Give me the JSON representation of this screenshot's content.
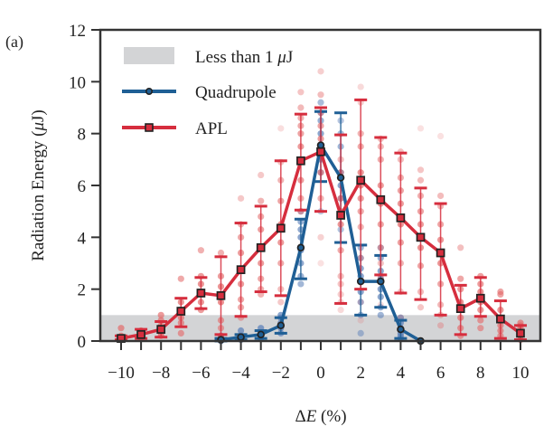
{
  "chart_data": {
    "type": "line",
    "panel_label": "(a)",
    "title": "",
    "xlabel": "ΔE (%)",
    "ylabel": "Radiation Energy (μJ)",
    "xlim": [
      -11.1,
      11
    ],
    "ylim": [
      0,
      12
    ],
    "xticks": [
      -10,
      -8,
      -6,
      -4,
      -2,
      0,
      2,
      4,
      6,
      8,
      10
    ],
    "xtick_labels": [
      "−10",
      "−8",
      "−6",
      "−4",
      "−2",
      "0",
      "2",
      "4",
      "6",
      "8",
      "10"
    ],
    "xticks_minor": [
      -9,
      -7,
      -5,
      -3,
      -1,
      1,
      3,
      5,
      7,
      9
    ],
    "yticks": [
      0,
      2,
      4,
      6,
      8,
      10,
      12
    ],
    "ytick_labels": [
      "0",
      "2",
      "4",
      "6",
      "8",
      "10",
      "12"
    ],
    "grid": false,
    "legend_position": "top-left",
    "threshold_band": {
      "label": "Less than 1 μJ",
      "ymin": 0,
      "ymax": 1,
      "color": "#d3d4d6"
    },
    "series": [
      {
        "name": "Quadrupole",
        "color": "#1f5f95",
        "scatter_color": "#5a7fb8",
        "marker": "circle",
        "x": [
          -5,
          -4,
          -3,
          -2,
          -1,
          0,
          1,
          2,
          3,
          4,
          5
        ],
        "y": [
          0.05,
          0.15,
          0.25,
          0.6,
          3.6,
          7.55,
          6.3,
          2.3,
          2.3,
          0.45,
          0.0
        ],
        "err_low": [
          0.05,
          0.1,
          0.15,
          0.3,
          1.2,
          1.4,
          2.5,
          1.3,
          1.0,
          0.35,
          0.0
        ],
        "err_high": [
          0.05,
          0.1,
          0.15,
          0.3,
          1.1,
          1.3,
          2.5,
          1.4,
          1.0,
          0.35,
          0.0
        ],
        "samples": [
          [
            0.0,
            0.05,
            0.1,
            0.2
          ],
          [
            0.05,
            0.1,
            0.2,
            0.4
          ],
          [
            0.1,
            0.2,
            0.3,
            0.5
          ],
          [
            0.3,
            0.5,
            0.7,
            0.9,
            1.0
          ],
          [
            2.2,
            2.5,
            3.0,
            3.5,
            4.0,
            4.3,
            4.6,
            5.0
          ],
          [
            5.0,
            6.5,
            7.0,
            7.5,
            8.0,
            8.5,
            8.8,
            9.2
          ],
          [
            4.3,
            5.5,
            6.0,
            6.5,
            7.5,
            8.0,
            8.5
          ],
          [
            0.3,
            1.0,
            1.5,
            1.9,
            2.5,
            2.8,
            3.2,
            3.6
          ],
          [
            1.0,
            1.3,
            1.7,
            2.0,
            2.4,
            2.7,
            3.2,
            3.6
          ],
          [
            0.1,
            0.2,
            0.3,
            0.5,
            0.7,
            0.9
          ],
          [
            0.0,
            0.0
          ]
        ]
      },
      {
        "name": "APL",
        "color": "#d62e3e",
        "scatter_color": "#e46a6a",
        "marker": "square",
        "x": [
          -10,
          -9,
          -8,
          -7,
          -6,
          -5,
          -4,
          -3,
          -2,
          -1,
          0,
          1,
          2,
          3,
          4,
          5,
          6,
          7,
          8,
          9,
          10
        ],
        "y": [
          0.1,
          0.25,
          0.45,
          1.15,
          1.85,
          1.75,
          2.75,
          3.6,
          4.35,
          6.95,
          7.3,
          4.85,
          6.2,
          5.45,
          4.75,
          4.0,
          3.4,
          1.25,
          1.65,
          0.85,
          0.3
        ],
        "err_low": [
          0.05,
          0.15,
          0.3,
          0.6,
          0.6,
          1.5,
          1.8,
          1.7,
          2.6,
          1.9,
          2.3,
          3.4,
          4.2,
          2.9,
          2.9,
          2.4,
          2.4,
          1.0,
          0.7,
          0.75,
          0.25
        ],
        "err_high": [
          0.1,
          0.2,
          0.3,
          0.5,
          0.6,
          1.5,
          1.8,
          1.6,
          2.6,
          1.8,
          1.7,
          3.1,
          3.1,
          2.4,
          2.5,
          1.9,
          1.9,
          0.9,
          0.8,
          0.7,
          0.3
        ],
        "samples": [
          [
            0.05,
            0.1,
            0.2,
            0.5
          ],
          [
            0.1,
            0.2,
            0.3,
            0.4
          ],
          [
            0.2,
            0.3,
            0.5,
            0.6,
            0.8,
            1.0
          ],
          [
            0.3,
            0.7,
            0.9,
            1.2,
            1.5,
            2.4
          ],
          [
            1.2,
            1.5,
            1.8,
            2.2,
            2.5,
            3.5
          ],
          [
            0.2,
            0.5,
            0.8,
            1.5,
            1.8,
            2.1,
            2.5,
            3.4
          ],
          [
            0.9,
            1.3,
            1.6,
            2.2,
            2.8,
            3.4,
            4.0,
            4.5,
            5.5
          ],
          [
            1.8,
            2.0,
            2.4,
            3.0,
            3.6,
            4.3,
            4.8,
            5.4,
            6.4
          ],
          [
            1.5,
            2.0,
            3.0,
            3.8,
            4.5,
            5.4,
            6.2,
            6.9,
            8.2
          ],
          [
            5.0,
            5.5,
            6.2,
            6.9,
            7.5,
            8.0,
            8.3,
            8.6,
            9.0,
            9.6
          ],
          [
            3.0,
            4.0,
            5.5,
            6.5,
            7.2,
            7.8,
            8.3,
            8.8,
            9.5,
            10.4
          ],
          [
            1.2,
            1.5,
            1.8,
            2.2,
            2.5,
            3.5,
            4.5,
            5.0,
            5.5,
            6.5,
            7.0
          ],
          [
            0.8,
            1.5,
            2.3,
            3.2,
            4.4,
            5.0,
            5.5,
            6.0,
            6.5,
            7.5,
            8.0,
            9.2,
            9.8
          ],
          [
            1.4,
            2.5,
            3.0,
            3.6,
            4.5,
            5.3,
            6.0,
            7.0,
            7.5,
            7.8
          ],
          [
            0.9,
            1.9,
            3.0,
            3.8,
            4.5,
            5.3,
            5.8,
            6.3,
            7.0,
            7.3
          ],
          [
            1.3,
            1.9,
            2.9,
            3.6,
            4.5,
            5.0,
            5.6,
            6.2,
            6.6,
            8.2
          ],
          [
            0.6,
            1.0,
            1.4,
            2.2,
            3.0,
            3.9,
            4.5,
            5.2,
            5.6,
            7.9
          ],
          [
            0.2,
            0.5,
            0.9,
            1.5,
            2.0,
            2.4,
            3.6
          ],
          [
            0.5,
            0.8,
            1.2,
            1.5,
            1.9,
            2.2,
            2.5
          ],
          [
            0.2,
            0.4,
            0.6,
            0.9,
            1.2,
            1.8,
            1.9
          ],
          [
            0.05,
            0.2,
            0.3,
            0.5,
            0.6,
            0.7
          ]
        ]
      }
    ]
  }
}
